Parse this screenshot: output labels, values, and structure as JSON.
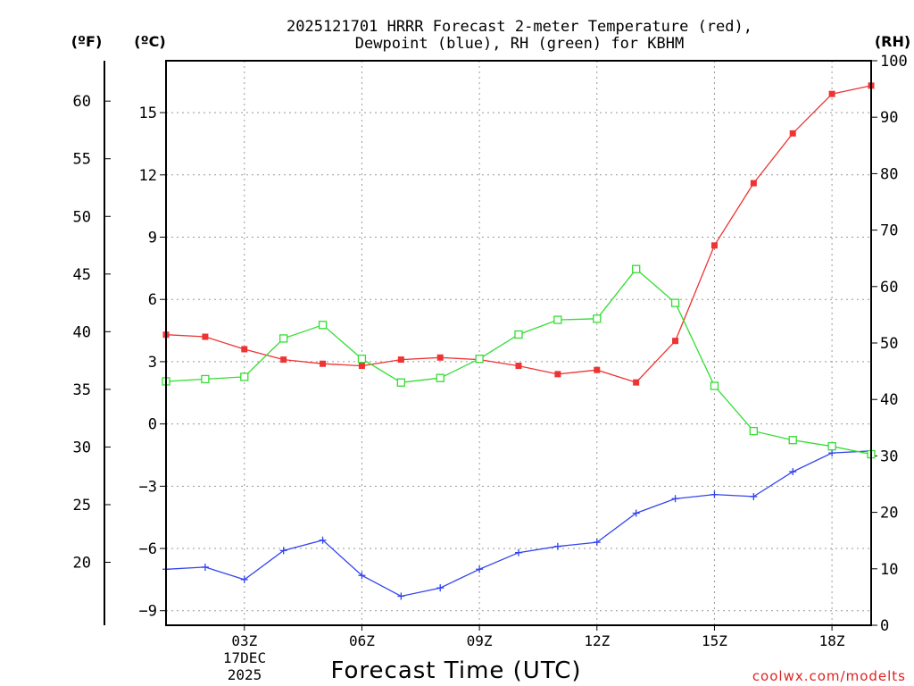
{
  "chart_data": {
    "type": "line",
    "title_line1": "2025121701 HRRR Forecast 2-meter Temperature (red),",
    "title_line2": "Dewpoint (blue), RH (green) for KBHM",
    "xlabel": "Forecast Time (UTC)",
    "date_label_day": "17DEC",
    "date_label_year": "2025",
    "credit": "coolwx.com/modelts",
    "unit_labels": {
      "fahrenheit": "(ºF)",
      "celsius": "(ºC)",
      "rh": "(RH)"
    },
    "x_hours": [
      1,
      2,
      3,
      4,
      5,
      6,
      7,
      8,
      9,
      10,
      11,
      12,
      13,
      14,
      15,
      16,
      17,
      18,
      19
    ],
    "xlim": [
      1,
      19
    ],
    "x_ticks": [
      {
        "hour": 3,
        "label": "03Z"
      },
      {
        "hour": 6,
        "label": "06Z"
      },
      {
        "hour": 9,
        "label": "09Z"
      },
      {
        "hour": 12,
        "label": "12Z"
      },
      {
        "hour": 15,
        "label": "15Z"
      },
      {
        "hour": 18,
        "label": "18Z"
      }
    ],
    "celsius_axis": {
      "ylim": [
        -9.7,
        17.5
      ],
      "ticks": [
        15,
        12,
        9,
        6,
        3,
        0,
        -3,
        -6,
        -9
      ],
      "tick_labels": [
        "15",
        "12",
        "9",
        "6",
        "3",
        "0",
        "−3",
        "−6",
        "−9"
      ]
    },
    "fahrenheit_axis": {
      "ticks": [
        60,
        55,
        50,
        45,
        40,
        35,
        30,
        25,
        20
      ],
      "tick_labels": [
        "60",
        "55",
        "50",
        "45",
        "40",
        "35",
        "30",
        "25",
        "20"
      ]
    },
    "rh_axis": {
      "ylim": [
        0,
        100
      ],
      "ticks": [
        100,
        90,
        80,
        70,
        60,
        50,
        40,
        30,
        20,
        10,
        0
      ],
      "tick_labels": [
        "100",
        "90",
        "80",
        "70",
        "60",
        "50",
        "40",
        "30",
        "20",
        "10",
        "0"
      ]
    },
    "series": [
      {
        "name": "Temperature",
        "axis": "celsius",
        "color": "#ee3333",
        "marker": "filled-square",
        "values": [
          4.3,
          4.2,
          3.6,
          3.1,
          2.9,
          2.8,
          3.1,
          3.2,
          3.1,
          2.8,
          2.4,
          2.6,
          2.0,
          4.0,
          8.6,
          11.6,
          14.0,
          15.9,
          16.3
        ]
      },
      {
        "name": "Dewpoint",
        "axis": "celsius",
        "color": "#3344ee",
        "marker": "plus",
        "values": [
          -7.0,
          -6.9,
          -7.5,
          -6.1,
          -5.6,
          -7.3,
          -8.3,
          -7.9,
          -7.0,
          -6.2,
          -5.9,
          -5.7,
          -4.3,
          -3.6,
          -3.4,
          -3.5,
          -2.3,
          -1.4,
          -1.3
        ]
      },
      {
        "name": "RH",
        "axis": "rh",
        "color": "#33dd33",
        "marker": "open-square",
        "values": [
          43.2,
          43.6,
          44.0,
          50.8,
          53.2,
          47.2,
          43.0,
          43.8,
          47.2,
          51.5,
          54.1,
          54.3,
          63.1,
          57.1,
          42.4,
          34.4,
          32.8,
          31.7,
          30.3
        ]
      }
    ]
  }
}
